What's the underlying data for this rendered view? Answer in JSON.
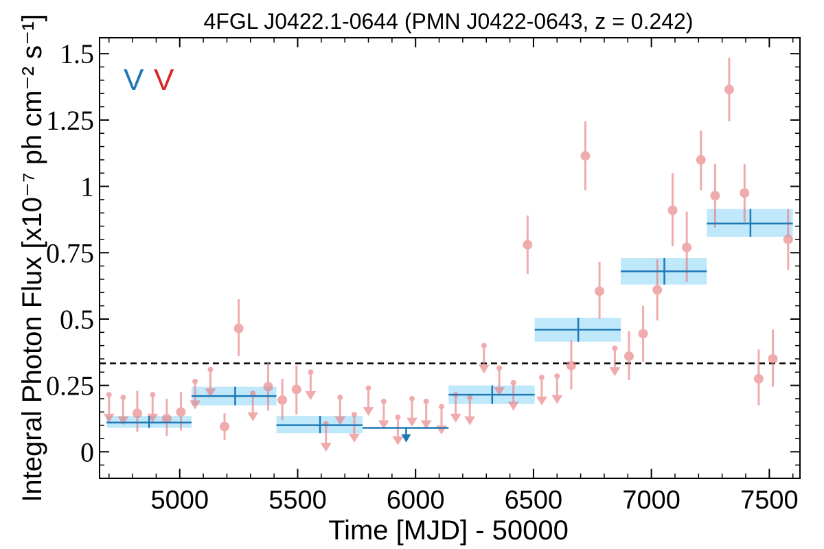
{
  "chart_data": {
    "type": "scatter",
    "title": "4FGL J0422.1-0644 (PMN J0422-0643, z = 0.242)",
    "xlabel": "Time [MJD] - 50000",
    "ylabel": "Integral Photon Flux [x10⁻⁷ ph cm⁻² s⁻¹]",
    "xlim": [
      4660,
      7630
    ],
    "ylim": [
      -0.1,
      1.56
    ],
    "xticks": [
      5000,
      5500,
      6000,
      6500,
      7000,
      7500
    ],
    "xtick_labels": [
      "5000",
      "5500",
      "6000",
      "6500",
      "7000",
      "7500"
    ],
    "yticks": [
      0,
      0.25,
      0.5,
      0.75,
      1,
      1.25,
      1.5
    ],
    "ytick_labels": [
      "0",
      "0.25",
      "0.5",
      "0.75",
      "1",
      "1.25",
      "1.5"
    ],
    "grid": false,
    "reference_line": {
      "y": 0.333,
      "style": "dashed"
    },
    "legend_markers": [
      {
        "text": "V",
        "color": "#1f77b4"
      },
      {
        "text": "V",
        "color": "#d62728"
      }
    ],
    "colors": {
      "long_bins": "#1f77b4",
      "long_bins_band": "#bfe9fb",
      "short_bins": "#e8787c",
      "reference_line": "#000000"
    },
    "series": [
      {
        "bins": "long",
        "points": [
          {
            "x": 4870,
            "xlo": 4690,
            "xhi": 5050,
            "y": 0.11,
            "ylo": 0.09,
            "yhi": 0.135
          },
          {
            "x": 5235,
            "xlo": 5050,
            "xhi": 5410,
            "y": 0.21,
            "ylo": 0.175,
            "yhi": 0.245
          },
          {
            "x": 5595,
            "xlo": 5410,
            "xhi": 5775,
            "y": 0.1,
            "ylo": 0.07,
            "yhi": 0.135
          },
          {
            "x": 5960,
            "xlo": 5775,
            "xhi": 6140,
            "y": 0.09,
            "upper_limit": true
          },
          {
            "x": 6325,
            "xlo": 6140,
            "xhi": 6505,
            "y": 0.215,
            "ylo": 0.18,
            "yhi": 0.25
          },
          {
            "x": 6690,
            "xlo": 6505,
            "xhi": 6870,
            "y": 0.46,
            "ylo": 0.415,
            "yhi": 0.505
          },
          {
            "x": 7055,
            "xlo": 6870,
            "xhi": 7235,
            "y": 0.68,
            "ylo": 0.63,
            "yhi": 0.73
          },
          {
            "x": 7420,
            "xlo": 7235,
            "xhi": 7600,
            "y": 0.86,
            "ylo": 0.81,
            "yhi": 0.915
          }
        ]
      },
      {
        "bins": "short",
        "points": [
          {
            "x": 4700,
            "y": 0.215,
            "upper_limit": true
          },
          {
            "x": 4760,
            "y": 0.205,
            "upper_limit": true
          },
          {
            "x": 4820,
            "y": 0.145,
            "ylo": 0.075,
            "yhi": 0.23
          },
          {
            "x": 4885,
            "y": 0.215,
            "upper_limit": true
          },
          {
            "x": 4945,
            "y": 0.125,
            "ylo": 0.06,
            "yhi": 0.2
          },
          {
            "x": 5005,
            "y": 0.15,
            "ylo": 0.08,
            "yhi": 0.225
          },
          {
            "x": 5065,
            "y": 0.265,
            "upper_limit": true
          },
          {
            "x": 5130,
            "y": 0.31,
            "upper_limit": true
          },
          {
            "x": 5190,
            "y": 0.095,
            "ylo": 0.045,
            "yhi": 0.145
          },
          {
            "x": 5250,
            "y": 0.465,
            "ylo": 0.36,
            "yhi": 0.575
          },
          {
            "x": 5310,
            "y": 0.22,
            "upper_limit": true
          },
          {
            "x": 5375,
            "y": 0.245,
            "ylo": 0.155,
            "yhi": 0.335
          },
          {
            "x": 5435,
            "y": 0.195,
            "ylo": 0.12,
            "yhi": 0.275
          },
          {
            "x": 5495,
            "y": 0.235,
            "ylo": 0.14,
            "yhi": 0.325
          },
          {
            "x": 5555,
            "y": 0.3,
            "upper_limit": true
          },
          {
            "x": 5620,
            "y": 0.105,
            "upper_limit": true
          },
          {
            "x": 5680,
            "y": 0.205,
            "upper_limit": true
          },
          {
            "x": 5740,
            "y": 0.14,
            "upper_limit": true
          },
          {
            "x": 5800,
            "y": 0.24,
            "upper_limit": true
          },
          {
            "x": 5865,
            "y": 0.19,
            "upper_limit": true
          },
          {
            "x": 5925,
            "y": 0.13,
            "upper_limit": true
          },
          {
            "x": 5985,
            "y": 0.2,
            "upper_limit": true
          },
          {
            "x": 6045,
            "y": 0.19,
            "upper_limit": true
          },
          {
            "x": 6110,
            "y": 0.17,
            "upper_limit": true
          },
          {
            "x": 6170,
            "y": 0.215,
            "upper_limit": true
          },
          {
            "x": 6230,
            "y": 0.205,
            "upper_limit": true
          },
          {
            "x": 6290,
            "y": 0.4,
            "upper_limit": true
          },
          {
            "x": 6355,
            "y": 0.315,
            "upper_limit": true
          },
          {
            "x": 6415,
            "y": 0.26,
            "upper_limit": true
          },
          {
            "x": 6475,
            "y": 0.78,
            "ylo": 0.67,
            "yhi": 0.89
          },
          {
            "x": 6535,
            "y": 0.28,
            "upper_limit": true
          },
          {
            "x": 6600,
            "y": 0.285,
            "upper_limit": true
          },
          {
            "x": 6660,
            "y": 0.325,
            "ylo": 0.235,
            "yhi": 0.42
          },
          {
            "x": 6720,
            "y": 1.115,
            "ylo": 0.985,
            "yhi": 1.245
          },
          {
            "x": 6780,
            "y": 0.605,
            "ylo": 0.5,
            "yhi": 0.715
          },
          {
            "x": 6845,
            "y": 0.39,
            "upper_limit": true
          },
          {
            "x": 6905,
            "y": 0.36,
            "ylo": 0.27,
            "yhi": 0.455
          },
          {
            "x": 6965,
            "y": 0.445,
            "ylo": 0.34,
            "yhi": 0.55
          },
          {
            "x": 7025,
            "y": 0.61,
            "ylo": 0.495,
            "yhi": 0.725
          },
          {
            "x": 7090,
            "y": 0.91,
            "ylo": 0.775,
            "yhi": 1.05
          },
          {
            "x": 7150,
            "y": 0.77,
            "ylo": 0.64,
            "yhi": 0.905
          },
          {
            "x": 7210,
            "y": 1.1,
            "ylo": 0.985,
            "yhi": 1.21
          },
          {
            "x": 7270,
            "y": 0.965,
            "ylo": 0.845,
            "yhi": 1.085
          },
          {
            "x": 7330,
            "y": 1.365,
            "ylo": 1.245,
            "yhi": 1.485
          },
          {
            "x": 7395,
            "y": 0.975,
            "ylo": 0.865,
            "yhi": 1.085
          },
          {
            "x": 7455,
            "y": 0.275,
            "ylo": 0.175,
            "yhi": 0.385
          },
          {
            "x": 7515,
            "y": 0.35,
            "ylo": 0.245,
            "yhi": 0.46
          },
          {
            "x": 7580,
            "y": 0.8,
            "ylo": 0.685,
            "yhi": 0.915
          }
        ]
      }
    ]
  }
}
